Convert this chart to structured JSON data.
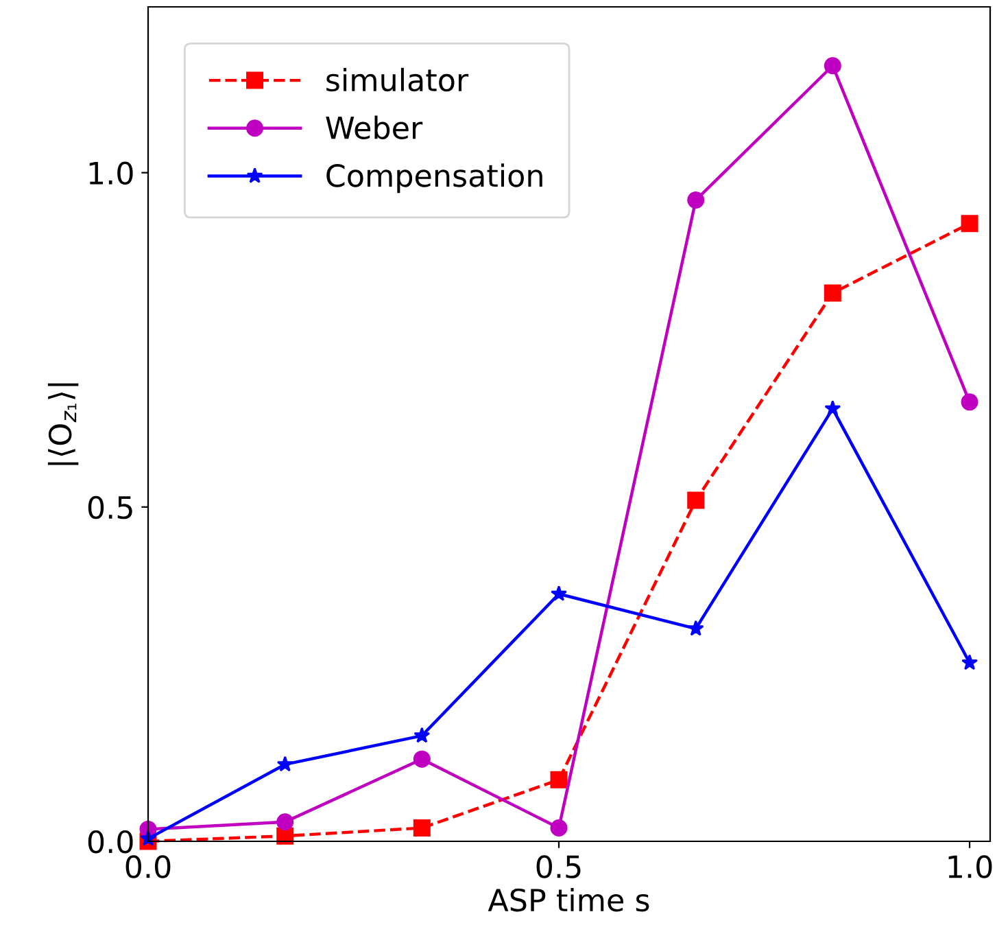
{
  "chart_data": {
    "type": "line",
    "xlabel": "ASP time s",
    "ylabel": "|⟨O$_{z₁}$⟩|",
    "x": [
      0,
      0.1667,
      0.3333,
      0.5,
      0.6667,
      0.8333,
      1.0
    ],
    "series": [
      {
        "name": "simulator",
        "color": "#ff0000",
        "marker": "square",
        "line_style": "dashed",
        "values": [
          0.0,
          0.008,
          0.02,
          0.092,
          0.51,
          0.82,
          0.924
        ]
      },
      {
        "name": "Weber",
        "color": "#c000c0",
        "marker": "circle",
        "line_style": "solid",
        "values": [
          0.018,
          0.029,
          0.123,
          0.02,
          0.959,
          1.16,
          0.657
        ]
      },
      {
        "name": "Compensation",
        "color": "#0000ff",
        "marker": "star",
        "line_style": "solid",
        "values": [
          0.004,
          0.115,
          0.158,
          0.37,
          0.318,
          0.647,
          0.267
        ]
      }
    ],
    "xlim": [
      0,
      1.025
    ],
    "ylim": [
      0,
      1.248
    ],
    "xticks": [
      {
        "value": 0,
        "label": "0.0"
      },
      {
        "value": 0.5,
        "label": "0.5"
      },
      {
        "value": 1.0,
        "label": "1.0"
      }
    ],
    "yticks": [
      {
        "value": 0,
        "label": "0.0"
      },
      {
        "value": 0.5,
        "label": "0.5"
      },
      {
        "value": 1.0,
        "label": "1.0"
      }
    ],
    "grid": false,
    "legend": "top left"
  }
}
